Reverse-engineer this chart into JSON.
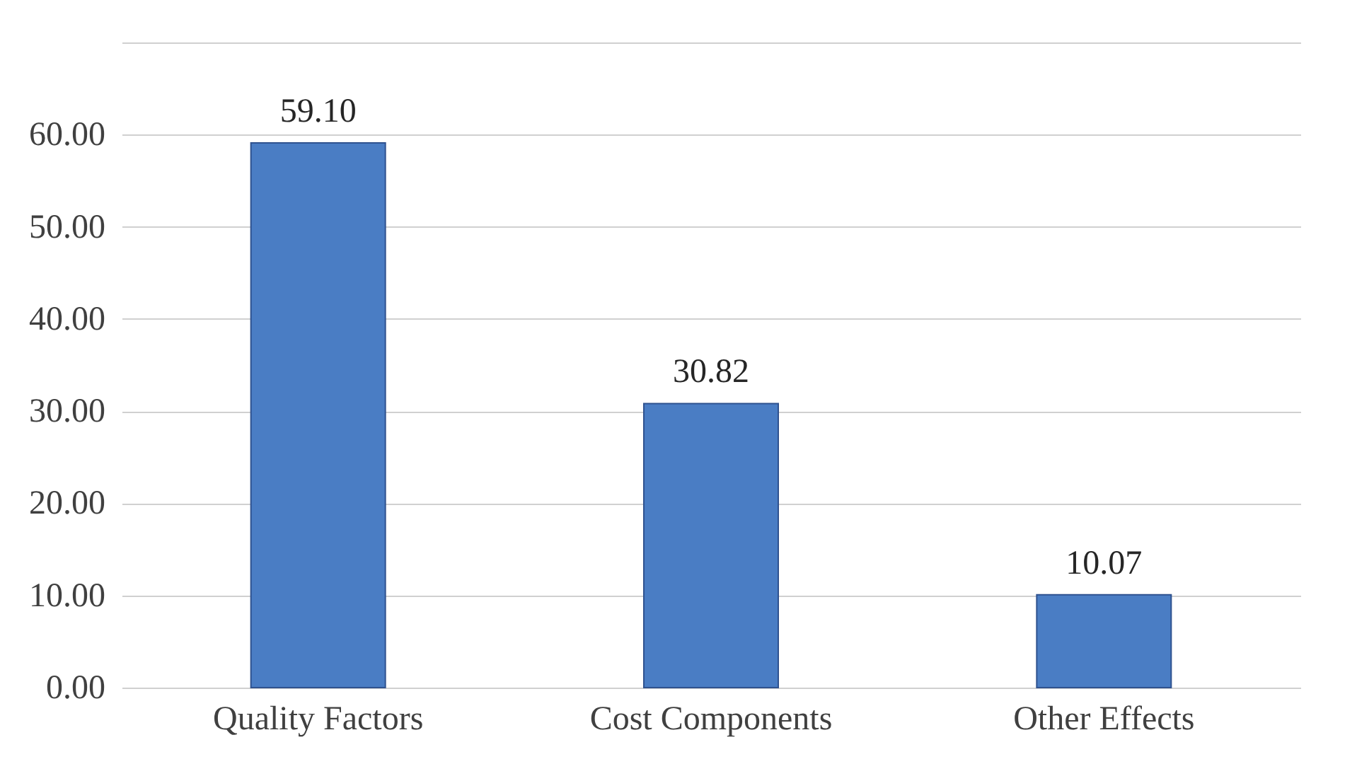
{
  "chart_data": {
    "type": "bar",
    "categories": [
      "Quality Factors",
      "Cost Components",
      "Other Effects"
    ],
    "values": [
      59.1,
      30.82,
      10.07
    ],
    "value_labels": [
      "59.10",
      "30.82",
      "10.07"
    ],
    "color": "#4a7dc4",
    "ylim": [
      0,
      70
    ],
    "yticks": [
      {
        "value": 0,
        "label": "0.00"
      },
      {
        "value": 10,
        "label": "10.00"
      },
      {
        "value": 20,
        "label": "20.00"
      },
      {
        "value": 30,
        "label": "30.00"
      },
      {
        "value": 40,
        "label": "40.00"
      },
      {
        "value": 50,
        "label": "50.00"
      },
      {
        "value": 60,
        "label": "60.00"
      },
      {
        "value": 70,
        "label": null
      }
    ],
    "grid": "y"
  }
}
